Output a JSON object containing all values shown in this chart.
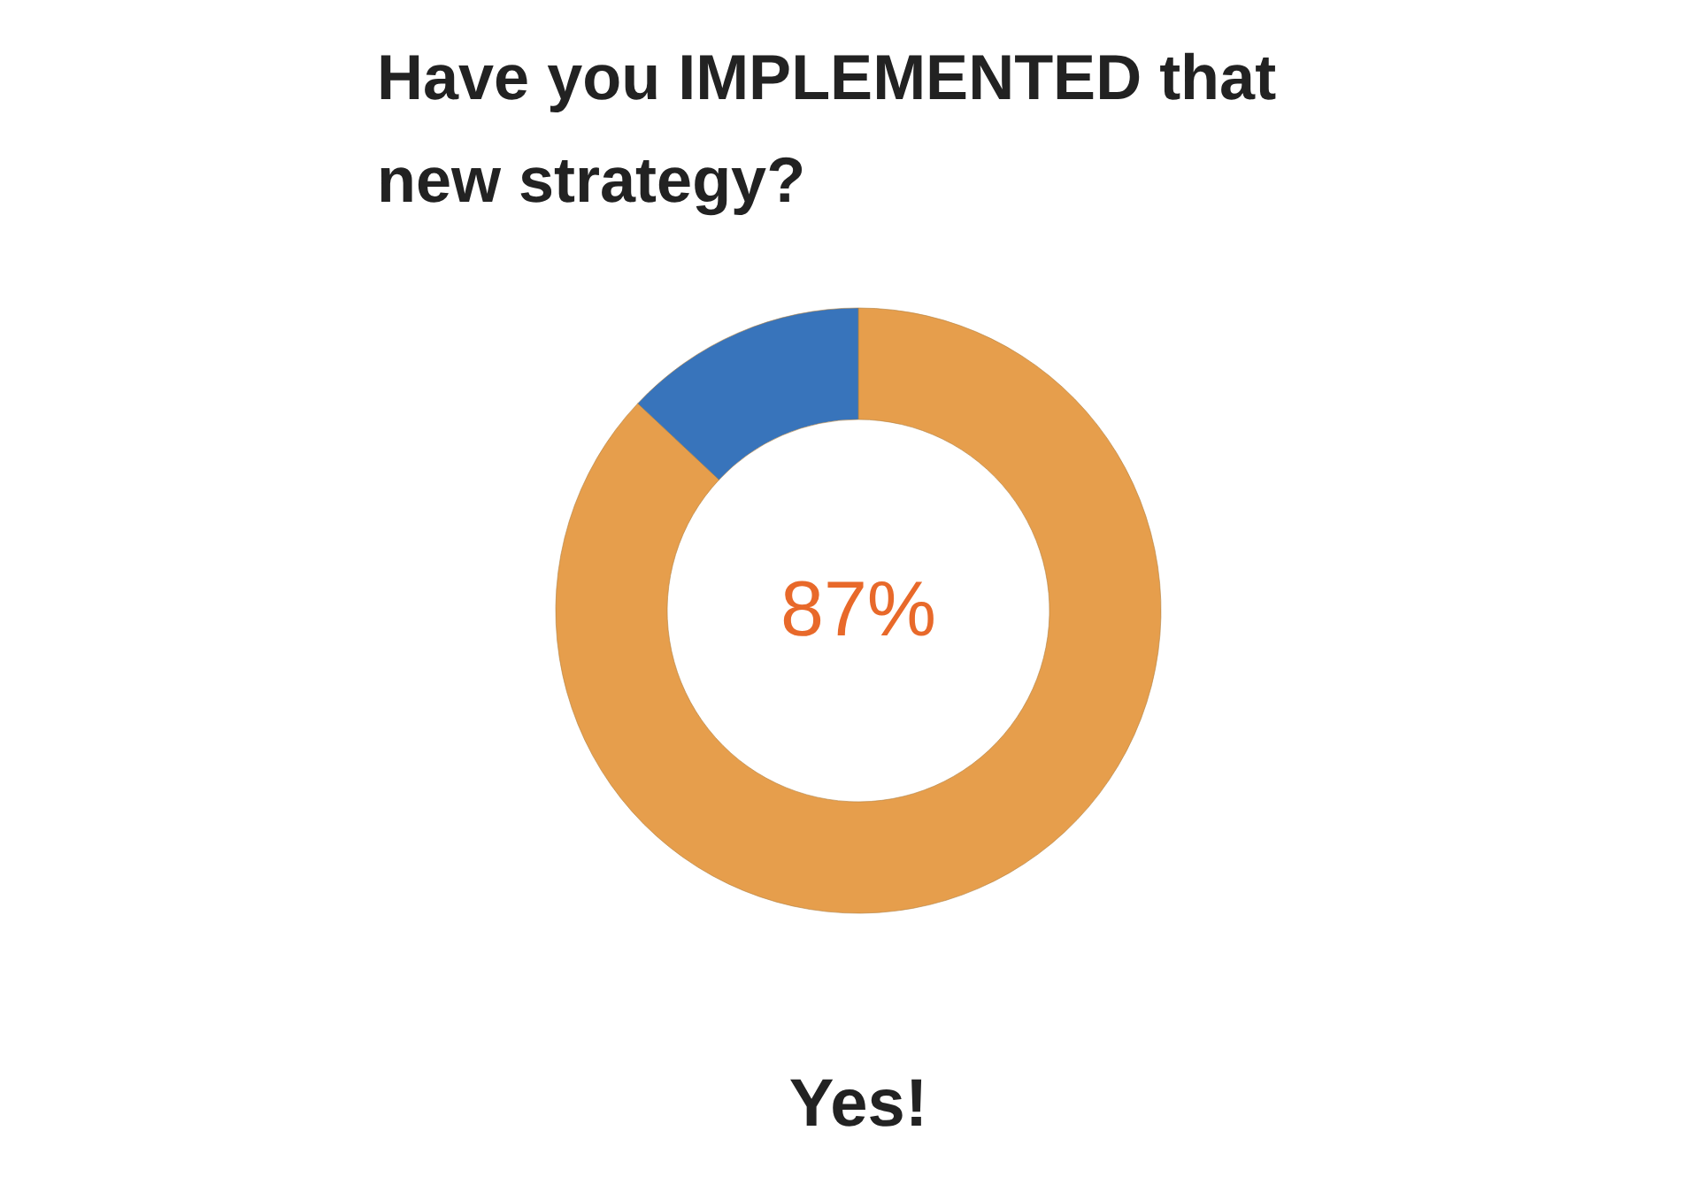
{
  "chart_data": {
    "type": "donut",
    "title": "Have you IMPLEMENTED that new strategy?",
    "categories": [
      null,
      null
    ],
    "values": [
      87,
      13
    ],
    "colors": [
      "#e69e4c",
      "#3874bb"
    ],
    "annotations": [
      "87%",
      "Yes!"
    ]
  }
}
